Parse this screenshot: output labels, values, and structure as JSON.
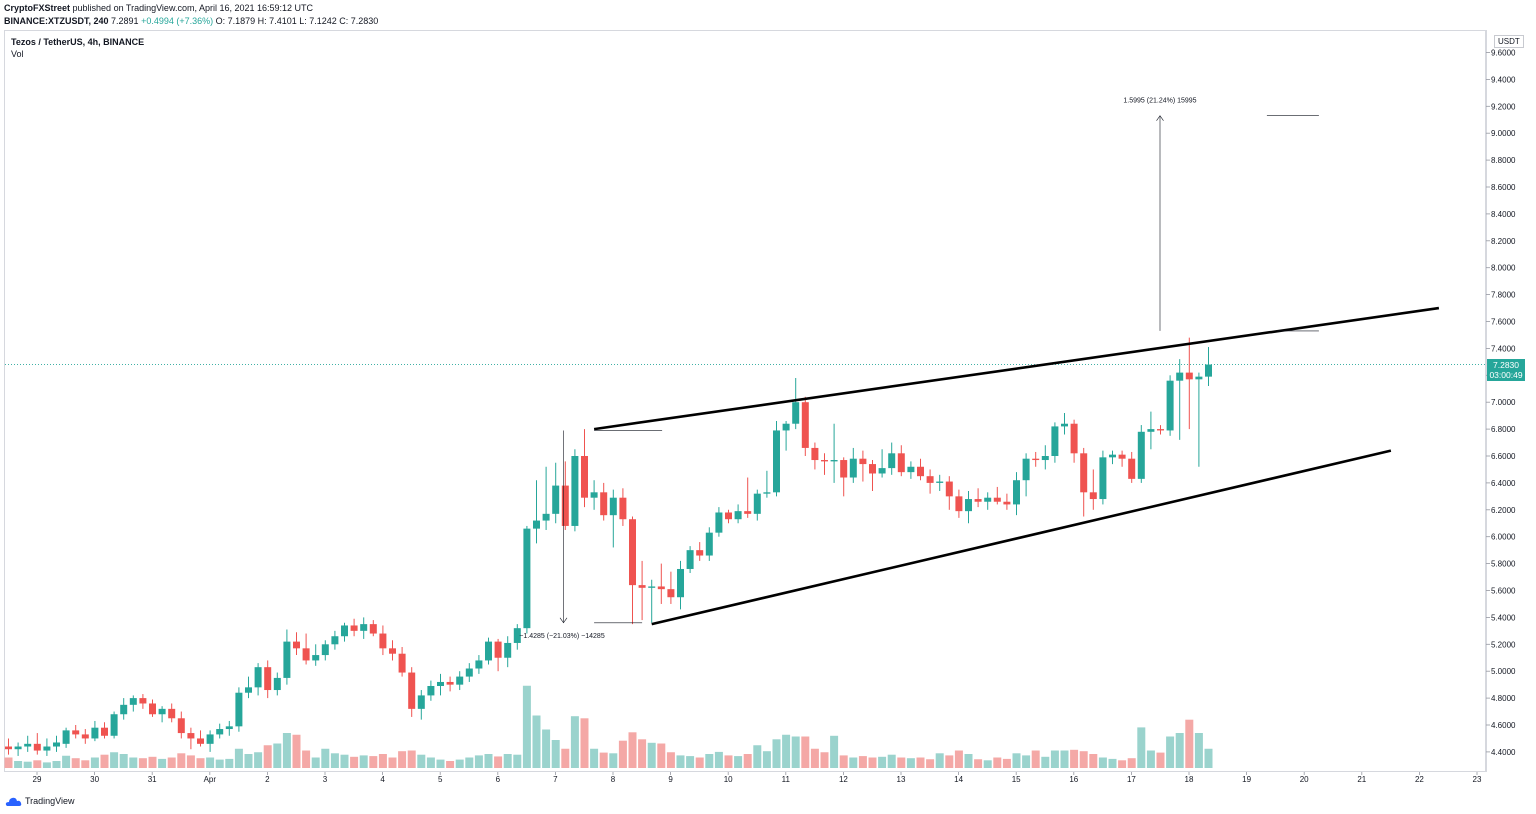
{
  "header": {
    "publisher": "CryptoFXStreet",
    "published_text": "published on TradingView.com, April 16, 2021 16:59:12 UTC"
  },
  "symbol_line": {
    "symbol": "BINANCE:XTZUSDT, 240",
    "last": "7.2891",
    "change": "+0.4994 (+7.36%)",
    "ohlc": "O: 7.1879 H: 7.4101 L: 7.1242 C: 7.2830"
  },
  "legend": {
    "title": "Tezos / TetherUS, 4h, BINANCE",
    "vol_label": "Vol"
  },
  "price_axis": {
    "unit": "USDT",
    "current_price": "7.2830",
    "countdown": "03:00:49"
  },
  "footer": {
    "brand": "TradingView"
  },
  "colors": {
    "up": "#26a69a",
    "down": "#ef5350",
    "vol_up": "#9ad3cd",
    "vol_down": "#f4a8a6",
    "line": "#000000"
  },
  "chart_data": {
    "type": "candlestick",
    "interval": "4h",
    "symbol": "XTZUSDT",
    "y_ticks": [
      "4.4000",
      "4.6000",
      "4.8000",
      "5.0000",
      "5.2000",
      "5.4000",
      "5.6000",
      "5.8000",
      "6.0000",
      "6.2000",
      "6.4000",
      "6.6000",
      "6.8000",
      "7.0000",
      "7.2000",
      "7.4000",
      "7.6000",
      "7.8000",
      "8.0000",
      "8.2000",
      "8.4000",
      "8.6000",
      "8.8000",
      "9.0000",
      "9.2000",
      "9.4000",
      "9.6000"
    ],
    "ylim": [
      4.29,
      9.73
    ],
    "x_ticks": [
      {
        "label": "29",
        "day": 0
      },
      {
        "label": "30",
        "day": 1
      },
      {
        "label": "31",
        "day": 2
      },
      {
        "label": "Apr",
        "day": 3
      },
      {
        "label": "2",
        "day": 4
      },
      {
        "label": "3",
        "day": 5
      },
      {
        "label": "4",
        "day": 6
      },
      {
        "label": "5",
        "day": 7
      },
      {
        "label": "6",
        "day": 8
      },
      {
        "label": "7",
        "day": 9
      },
      {
        "label": "8",
        "day": 10
      },
      {
        "label": "9",
        "day": 11
      },
      {
        "label": "10",
        "day": 12
      },
      {
        "label": "11",
        "day": 13
      },
      {
        "label": "12",
        "day": 14
      },
      {
        "label": "13",
        "day": 15
      },
      {
        "label": "14",
        "day": 16
      },
      {
        "label": "15",
        "day": 17
      },
      {
        "label": "16",
        "day": 18
      },
      {
        "label": "17",
        "day": 19
      },
      {
        "label": "18",
        "day": 20
      },
      {
        "label": "19",
        "day": 21
      },
      {
        "label": "20",
        "day": 22
      },
      {
        "label": "21",
        "day": 23
      },
      {
        "label": "22",
        "day": 24
      },
      {
        "label": "23",
        "day": 25
      }
    ],
    "candles": [
      {
        "o": 4.44,
        "h": 4.5,
        "l": 4.38,
        "c": 4.42,
        "v": 0.3
      },
      {
        "o": 4.42,
        "h": 4.47,
        "l": 4.37,
        "c": 4.44,
        "v": 0.2
      },
      {
        "o": 4.44,
        "h": 4.52,
        "l": 4.4,
        "c": 4.46,
        "v": 0.18
      },
      {
        "o": 4.46,
        "h": 4.54,
        "l": 4.38,
        "c": 4.41,
        "v": 0.22
      },
      {
        "o": 4.41,
        "h": 4.5,
        "l": 4.37,
        "c": 4.44,
        "v": 0.16
      },
      {
        "o": 4.44,
        "h": 4.52,
        "l": 4.4,
        "c": 4.47,
        "v": 0.2
      },
      {
        "o": 4.46,
        "h": 4.58,
        "l": 4.43,
        "c": 4.56,
        "v": 0.35
      },
      {
        "o": 4.56,
        "h": 4.6,
        "l": 4.5,
        "c": 4.53,
        "v": 0.28
      },
      {
        "o": 4.53,
        "h": 4.57,
        "l": 4.46,
        "c": 4.5,
        "v": 0.22
      },
      {
        "o": 4.5,
        "h": 4.63,
        "l": 4.48,
        "c": 4.58,
        "v": 0.3
      },
      {
        "o": 4.58,
        "h": 4.62,
        "l": 4.5,
        "c": 4.52,
        "v": 0.38
      },
      {
        "o": 4.52,
        "h": 4.7,
        "l": 4.5,
        "c": 4.68,
        "v": 0.45
      },
      {
        "o": 4.68,
        "h": 4.8,
        "l": 4.64,
        "c": 4.75,
        "v": 0.4
      },
      {
        "o": 4.75,
        "h": 4.82,
        "l": 4.7,
        "c": 4.8,
        "v": 0.3
      },
      {
        "o": 4.8,
        "h": 4.83,
        "l": 4.72,
        "c": 4.76,
        "v": 0.28
      },
      {
        "o": 4.76,
        "h": 4.79,
        "l": 4.66,
        "c": 4.68,
        "v": 0.32
      },
      {
        "o": 4.68,
        "h": 4.74,
        "l": 4.62,
        "c": 4.72,
        "v": 0.26
      },
      {
        "o": 4.72,
        "h": 4.76,
        "l": 4.62,
        "c": 4.65,
        "v": 0.3
      },
      {
        "o": 4.65,
        "h": 4.7,
        "l": 4.5,
        "c": 4.54,
        "v": 0.42
      },
      {
        "o": 4.54,
        "h": 4.58,
        "l": 4.42,
        "c": 4.5,
        "v": 0.36
      },
      {
        "o": 4.5,
        "h": 4.56,
        "l": 4.44,
        "c": 4.46,
        "v": 0.28
      },
      {
        "o": 4.46,
        "h": 4.56,
        "l": 4.4,
        "c": 4.53,
        "v": 0.3
      },
      {
        "o": 4.53,
        "h": 4.61,
        "l": 4.5,
        "c": 4.57,
        "v": 0.24
      },
      {
        "o": 4.57,
        "h": 4.63,
        "l": 4.52,
        "c": 4.59,
        "v": 0.26
      },
      {
        "o": 4.59,
        "h": 4.88,
        "l": 4.55,
        "c": 4.84,
        "v": 0.55
      },
      {
        "o": 4.84,
        "h": 4.96,
        "l": 4.8,
        "c": 4.88,
        "v": 0.4
      },
      {
        "o": 4.88,
        "h": 5.06,
        "l": 4.82,
        "c": 5.03,
        "v": 0.45
      },
      {
        "o": 5.03,
        "h": 5.08,
        "l": 4.8,
        "c": 4.86,
        "v": 0.65
      },
      {
        "o": 4.86,
        "h": 4.99,
        "l": 4.82,
        "c": 4.95,
        "v": 0.7
      },
      {
        "o": 4.95,
        "h": 5.31,
        "l": 4.9,
        "c": 5.22,
        "v": 1.0
      },
      {
        "o": 5.22,
        "h": 5.29,
        "l": 5.12,
        "c": 5.17,
        "v": 0.95
      },
      {
        "o": 5.17,
        "h": 5.28,
        "l": 5.05,
        "c": 5.08,
        "v": 0.5
      },
      {
        "o": 5.08,
        "h": 5.2,
        "l": 5.04,
        "c": 5.12,
        "v": 0.3
      },
      {
        "o": 5.12,
        "h": 5.23,
        "l": 5.08,
        "c": 5.2,
        "v": 0.55
      },
      {
        "o": 5.2,
        "h": 5.3,
        "l": 5.16,
        "c": 5.26,
        "v": 0.42
      },
      {
        "o": 5.26,
        "h": 5.36,
        "l": 5.22,
        "c": 5.34,
        "v": 0.38
      },
      {
        "o": 5.34,
        "h": 5.39,
        "l": 5.26,
        "c": 5.3,
        "v": 0.32
      },
      {
        "o": 5.3,
        "h": 5.4,
        "l": 5.24,
        "c": 5.35,
        "v": 0.36
      },
      {
        "o": 5.35,
        "h": 5.38,
        "l": 5.26,
        "c": 5.28,
        "v": 0.34
      },
      {
        "o": 5.28,
        "h": 5.34,
        "l": 5.12,
        "c": 5.17,
        "v": 0.4
      },
      {
        "o": 5.17,
        "h": 5.23,
        "l": 5.08,
        "c": 5.13,
        "v": 0.3
      },
      {
        "o": 5.13,
        "h": 5.18,
        "l": 4.96,
        "c": 4.99,
        "v": 0.48
      },
      {
        "o": 4.99,
        "h": 5.03,
        "l": 4.66,
        "c": 4.72,
        "v": 0.5
      },
      {
        "o": 4.72,
        "h": 4.86,
        "l": 4.64,
        "c": 4.82,
        "v": 0.38
      },
      {
        "o": 4.82,
        "h": 4.93,
        "l": 4.78,
        "c": 4.89,
        "v": 0.3
      },
      {
        "o": 4.89,
        "h": 4.98,
        "l": 4.82,
        "c": 4.92,
        "v": 0.24
      },
      {
        "o": 4.92,
        "h": 4.96,
        "l": 4.85,
        "c": 4.9,
        "v": 0.2
      },
      {
        "o": 4.9,
        "h": 5.0,
        "l": 4.86,
        "c": 4.96,
        "v": 0.24
      },
      {
        "o": 4.96,
        "h": 5.06,
        "l": 4.92,
        "c": 5.02,
        "v": 0.3
      },
      {
        "o": 5.02,
        "h": 5.12,
        "l": 4.98,
        "c": 5.08,
        "v": 0.36
      },
      {
        "o": 5.08,
        "h": 5.25,
        "l": 5.05,
        "c": 5.22,
        "v": 0.4
      },
      {
        "o": 5.22,
        "h": 5.24,
        "l": 5.0,
        "c": 5.1,
        "v": 0.33
      },
      {
        "o": 5.1,
        "h": 5.26,
        "l": 5.03,
        "c": 5.21,
        "v": 0.4
      },
      {
        "o": 5.21,
        "h": 5.35,
        "l": 5.16,
        "c": 5.32,
        "v": 0.38
      },
      {
        "o": 5.32,
        "h": 6.08,
        "l": 5.28,
        "c": 6.06,
        "v": 2.35
      },
      {
        "o": 6.06,
        "h": 6.42,
        "l": 5.95,
        "c": 6.12,
        "v": 1.5
      },
      {
        "o": 6.12,
        "h": 6.52,
        "l": 6.05,
        "c": 6.17,
        "v": 1.1
      },
      {
        "o": 6.17,
        "h": 6.55,
        "l": 6.1,
        "c": 6.38,
        "v": 0.8
      },
      {
        "o": 6.38,
        "h": 6.56,
        "l": 6.05,
        "c": 6.08,
        "v": 0.55
      },
      {
        "o": 6.08,
        "h": 6.65,
        "l": 6.04,
        "c": 6.6,
        "v": 1.48
      },
      {
        "o": 6.6,
        "h": 6.8,
        "l": 6.22,
        "c": 6.29,
        "v": 1.42
      },
      {
        "o": 6.29,
        "h": 6.42,
        "l": 6.2,
        "c": 6.33,
        "v": 0.55
      },
      {
        "o": 6.33,
        "h": 6.4,
        "l": 6.12,
        "c": 6.16,
        "v": 0.44
      },
      {
        "o": 6.16,
        "h": 6.35,
        "l": 5.92,
        "c": 6.29,
        "v": 0.42
      },
      {
        "o": 6.29,
        "h": 6.36,
        "l": 6.08,
        "c": 6.13,
        "v": 0.78
      },
      {
        "o": 6.13,
        "h": 6.15,
        "l": 5.35,
        "c": 5.64,
        "v": 1.02
      },
      {
        "o": 5.64,
        "h": 5.82,
        "l": 5.38,
        "c": 5.62,
        "v": 0.82
      },
      {
        "o": 5.62,
        "h": 5.68,
        "l": 5.36,
        "c": 5.63,
        "v": 0.72
      },
      {
        "o": 5.63,
        "h": 5.8,
        "l": 5.5,
        "c": 5.61,
        "v": 0.7
      },
      {
        "o": 5.61,
        "h": 5.74,
        "l": 5.5,
        "c": 5.55,
        "v": 0.45
      },
      {
        "o": 5.55,
        "h": 5.82,
        "l": 5.46,
        "c": 5.76,
        "v": 0.36
      },
      {
        "o": 5.76,
        "h": 5.93,
        "l": 5.73,
        "c": 5.9,
        "v": 0.34
      },
      {
        "o": 5.9,
        "h": 5.96,
        "l": 5.82,
        "c": 5.86,
        "v": 0.3
      },
      {
        "o": 5.86,
        "h": 6.07,
        "l": 5.82,
        "c": 6.03,
        "v": 0.4
      },
      {
        "o": 6.03,
        "h": 6.22,
        "l": 6.0,
        "c": 6.18,
        "v": 0.46
      },
      {
        "o": 6.18,
        "h": 6.2,
        "l": 6.1,
        "c": 6.13,
        "v": 0.36
      },
      {
        "o": 6.13,
        "h": 6.24,
        "l": 6.1,
        "c": 6.19,
        "v": 0.34
      },
      {
        "o": 6.19,
        "h": 6.44,
        "l": 6.14,
        "c": 6.17,
        "v": 0.4
      },
      {
        "o": 6.17,
        "h": 6.35,
        "l": 6.12,
        "c": 6.32,
        "v": 0.65
      },
      {
        "o": 6.32,
        "h": 6.49,
        "l": 6.29,
        "c": 6.33,
        "v": 0.48
      },
      {
        "o": 6.33,
        "h": 6.86,
        "l": 6.3,
        "c": 6.79,
        "v": 0.82
      },
      {
        "o": 6.79,
        "h": 6.86,
        "l": 6.64,
        "c": 6.84,
        "v": 0.95
      },
      {
        "o": 6.84,
        "h": 7.18,
        "l": 6.8,
        "c": 7.0,
        "v": 0.9
      },
      {
        "o": 7.0,
        "h": 7.04,
        "l": 6.6,
        "c": 6.66,
        "v": 0.9
      },
      {
        "o": 6.66,
        "h": 6.7,
        "l": 6.5,
        "c": 6.57,
        "v": 0.55
      },
      {
        "o": 6.57,
        "h": 6.62,
        "l": 6.46,
        "c": 6.56,
        "v": 0.45
      },
      {
        "o": 6.56,
        "h": 6.84,
        "l": 6.4,
        "c": 6.57,
        "v": 0.92
      },
      {
        "o": 6.57,
        "h": 6.59,
        "l": 6.3,
        "c": 6.44,
        "v": 0.36
      },
      {
        "o": 6.44,
        "h": 6.66,
        "l": 6.4,
        "c": 6.58,
        "v": 0.3
      },
      {
        "o": 6.58,
        "h": 6.64,
        "l": 6.41,
        "c": 6.54,
        "v": 0.34
      },
      {
        "o": 6.54,
        "h": 6.57,
        "l": 6.34,
        "c": 6.47,
        "v": 0.3
      },
      {
        "o": 6.47,
        "h": 6.65,
        "l": 6.44,
        "c": 6.51,
        "v": 0.32
      },
      {
        "o": 6.51,
        "h": 6.7,
        "l": 6.46,
        "c": 6.62,
        "v": 0.38
      },
      {
        "o": 6.62,
        "h": 6.68,
        "l": 6.45,
        "c": 6.48,
        "v": 0.3
      },
      {
        "o": 6.48,
        "h": 6.56,
        "l": 6.43,
        "c": 6.52,
        "v": 0.28
      },
      {
        "o": 6.52,
        "h": 6.58,
        "l": 6.42,
        "c": 6.45,
        "v": 0.3
      },
      {
        "o": 6.45,
        "h": 6.5,
        "l": 6.32,
        "c": 6.4,
        "v": 0.25
      },
      {
        "o": 6.4,
        "h": 6.46,
        "l": 6.34,
        "c": 6.41,
        "v": 0.42
      },
      {
        "o": 6.41,
        "h": 6.45,
        "l": 6.2,
        "c": 6.3,
        "v": 0.36
      },
      {
        "o": 6.3,
        "h": 6.35,
        "l": 6.14,
        "c": 6.19,
        "v": 0.5
      },
      {
        "o": 6.19,
        "h": 6.34,
        "l": 6.1,
        "c": 6.28,
        "v": 0.4
      },
      {
        "o": 6.28,
        "h": 6.36,
        "l": 6.22,
        "c": 6.26,
        "v": 0.25
      },
      {
        "o": 6.26,
        "h": 6.33,
        "l": 6.2,
        "c": 6.29,
        "v": 0.22
      },
      {
        "o": 6.29,
        "h": 6.37,
        "l": 6.24,
        "c": 6.26,
        "v": 0.3
      },
      {
        "o": 6.26,
        "h": 6.32,
        "l": 6.2,
        "c": 6.24,
        "v": 0.26
      },
      {
        "o": 6.24,
        "h": 6.48,
        "l": 6.16,
        "c": 6.42,
        "v": 0.42
      },
      {
        "o": 6.42,
        "h": 6.62,
        "l": 6.3,
        "c": 6.58,
        "v": 0.36
      },
      {
        "o": 6.58,
        "h": 6.63,
        "l": 6.52,
        "c": 6.57,
        "v": 0.5
      },
      {
        "o": 6.57,
        "h": 6.68,
        "l": 6.5,
        "c": 6.6,
        "v": 0.32
      },
      {
        "o": 6.6,
        "h": 6.85,
        "l": 6.55,
        "c": 6.82,
        "v": 0.5
      },
      {
        "o": 6.82,
        "h": 6.92,
        "l": 6.76,
        "c": 6.84,
        "v": 0.5
      },
      {
        "o": 6.84,
        "h": 6.87,
        "l": 6.55,
        "c": 6.62,
        "v": 0.52
      },
      {
        "o": 6.62,
        "h": 6.66,
        "l": 6.15,
        "c": 6.33,
        "v": 0.48
      },
      {
        "o": 6.33,
        "h": 6.5,
        "l": 6.2,
        "c": 6.28,
        "v": 0.4
      },
      {
        "o": 6.28,
        "h": 6.64,
        "l": 6.24,
        "c": 6.59,
        "v": 0.3
      },
      {
        "o": 6.59,
        "h": 6.64,
        "l": 6.54,
        "c": 6.61,
        "v": 0.26
      },
      {
        "o": 6.61,
        "h": 6.64,
        "l": 6.52,
        "c": 6.58,
        "v": 0.22
      },
      {
        "o": 6.58,
        "h": 6.63,
        "l": 6.4,
        "c": 6.43,
        "v": 0.28
      },
      {
        "o": 6.43,
        "h": 6.83,
        "l": 6.4,
        "c": 6.78,
        "v": 1.16
      },
      {
        "o": 6.78,
        "h": 6.93,
        "l": 6.65,
        "c": 6.8,
        "v": 0.5
      },
      {
        "o": 6.8,
        "h": 6.83,
        "l": 6.76,
        "c": 6.79,
        "v": 0.44
      },
      {
        "o": 6.79,
        "h": 7.2,
        "l": 6.75,
        "c": 7.16,
        "v": 0.9
      },
      {
        "o": 7.16,
        "h": 7.32,
        "l": 6.72,
        "c": 7.22,
        "v": 1.0
      },
      {
        "o": 7.22,
        "h": 7.48,
        "l": 6.8,
        "c": 7.17,
        "v": 1.38
      },
      {
        "o": 7.17,
        "h": 7.22,
        "l": 6.52,
        "c": 7.19,
        "v": 1.0
      },
      {
        "o": 7.19,
        "h": 7.41,
        "l": 7.12,
        "c": 7.28,
        "v": 0.55
      }
    ],
    "trendlines": [
      {
        "name": "upper-channel",
        "from": {
          "bar": 61,
          "price": 6.8
        },
        "to": {
          "bar": 149,
          "price": 7.7
        }
      },
      {
        "name": "lower-channel",
        "from": {
          "bar": 67,
          "price": 5.35
        },
        "to": {
          "bar": 144,
          "price": 6.64
        }
      }
    ],
    "measurements": [
      {
        "label": "−1.4285 (−21.03%) −14285",
        "from": {
          "bar": 61,
          "price": 6.79
        },
        "to": {
          "bar": 67,
          "price": 5.36
        }
      },
      {
        "label": "1.5995 (21.24%) 15995",
        "from": {
          "bar": 134,
          "price": 7.53
        },
        "to": {
          "bar": 134,
          "price": 9.13
        }
      }
    ]
  }
}
